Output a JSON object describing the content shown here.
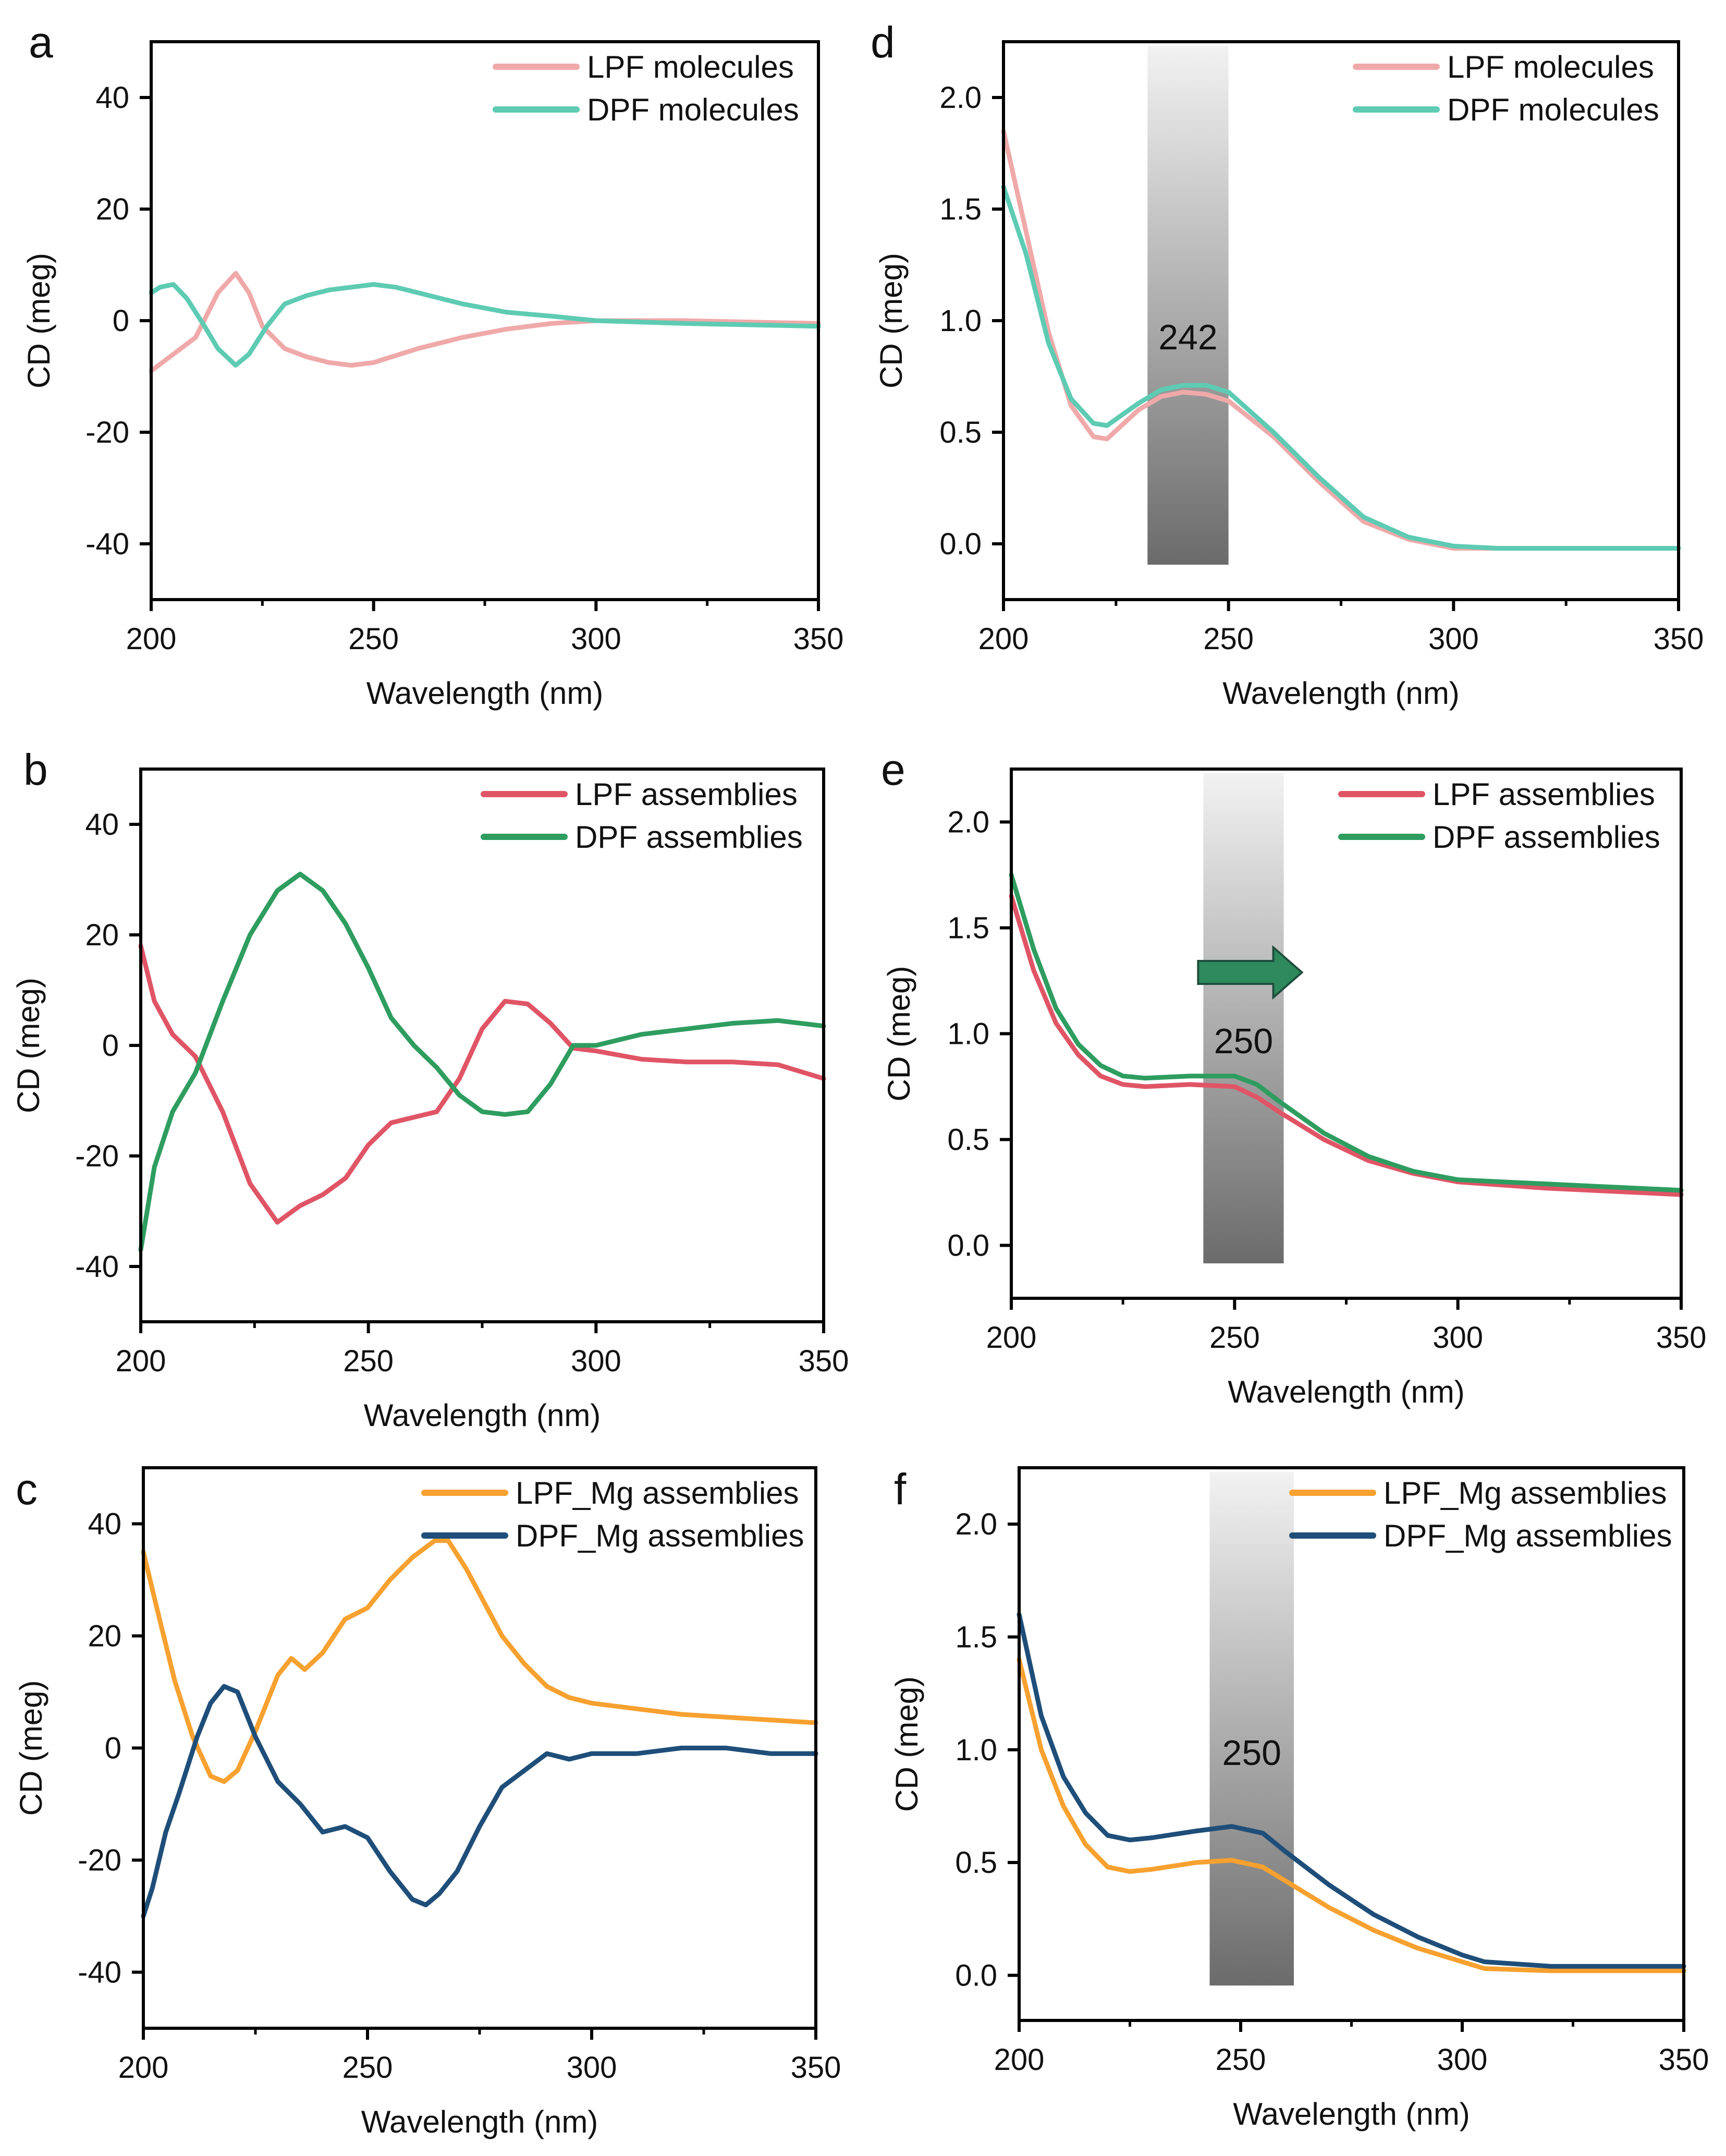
{
  "figure": {
    "panel_count": 6
  },
  "chart_data": [
    {
      "panel": "a",
      "type": "line",
      "title": "",
      "xlabel": "Wavelength (nm)",
      "ylabel": "CD (meg)",
      "xlim": [
        200,
        350
      ],
      "ylim": [
        -50,
        50
      ],
      "xticks": [
        200,
        250,
        300,
        350
      ],
      "yticks": [
        -40,
        -20,
        0,
        20,
        40
      ],
      "grid": false,
      "legend_position": "top-right",
      "series": [
        {
          "name": "LPF molecules",
          "color": "#f0a9a9",
          "x": [
            200,
            205,
            210,
            215,
            219,
            222,
            225,
            230,
            235,
            240,
            245,
            250,
            260,
            270,
            280,
            290,
            300,
            320,
            350
          ],
          "y": [
            -9,
            -6,
            -3,
            5,
            8.5,
            5,
            -1,
            -5,
            -6.5,
            -7.5,
            -8,
            -7.5,
            -5,
            -3,
            -1.5,
            -0.5,
            0,
            0,
            -0.5
          ]
        },
        {
          "name": "DPF molecules",
          "color": "#5ecbb3",
          "x": [
            200,
            202,
            205,
            208,
            212,
            215,
            219,
            222,
            226,
            230,
            235,
            240,
            250,
            255,
            260,
            270,
            280,
            290,
            300,
            320,
            350
          ],
          "y": [
            5,
            6,
            6.5,
            4,
            -1,
            -5,
            -8,
            -6,
            -1,
            3,
            4.5,
            5.5,
            6.5,
            6,
            5,
            3,
            1.5,
            0.8,
            0,
            -0.5,
            -1
          ]
        }
      ]
    },
    {
      "panel": "d",
      "type": "line",
      "title": "",
      "xlabel": "Wavelength (nm)",
      "ylabel": "CD (meg)",
      "xlim": [
        200,
        350
      ],
      "ylim": [
        -0.25,
        2.25
      ],
      "xticks": [
        200,
        250,
        300,
        350
      ],
      "yticks": [
        0.0,
        0.5,
        1.0,
        1.5,
        2.0
      ],
      "ytick_labels": [
        "0.0",
        "0.5",
        "1.0",
        "1.5",
        "2.0"
      ],
      "grid": false,
      "legend_position": "top-right",
      "highlight_band": {
        "x_from": 232,
        "x_to": 250,
        "label": "242"
      },
      "series": [
        {
          "name": "LPF molecules",
          "color": "#f0a9a9",
          "x": [
            200,
            205,
            210,
            215,
            220,
            223,
            230,
            235,
            240,
            245,
            250,
            260,
            270,
            280,
            290,
            300,
            310,
            330,
            350
          ],
          "y": [
            1.85,
            1.4,
            0.95,
            0.62,
            0.48,
            0.47,
            0.6,
            0.66,
            0.68,
            0.67,
            0.64,
            0.48,
            0.28,
            0.1,
            0.02,
            -0.02,
            -0.02,
            -0.02,
            -0.02
          ]
        },
        {
          "name": "DPF molecules",
          "color": "#5ecbb3",
          "x": [
            200,
            205,
            210,
            215,
            220,
            223,
            230,
            235,
            240,
            245,
            250,
            260,
            270,
            280,
            290,
            300,
            310,
            330,
            350
          ],
          "y": [
            1.6,
            1.3,
            0.9,
            0.65,
            0.54,
            0.53,
            0.63,
            0.69,
            0.71,
            0.71,
            0.68,
            0.5,
            0.3,
            0.12,
            0.03,
            -0.01,
            -0.02,
            -0.02,
            -0.02
          ]
        }
      ]
    },
    {
      "panel": "b",
      "type": "line",
      "title": "",
      "xlabel": "Wavelength (nm)",
      "ylabel": "CD (meg)",
      "xlim": [
        200,
        350
      ],
      "ylim": [
        -50,
        50
      ],
      "xticks": [
        200,
        250,
        300,
        350
      ],
      "yticks": [
        -40,
        -20,
        0,
        20,
        40
      ],
      "grid": false,
      "legend_position": "top-right",
      "series": [
        {
          "name": "LPF assemblies",
          "color": "#e05566",
          "x": [
            200,
            203,
            207,
            212,
            218,
            224,
            230,
            235,
            240,
            245,
            250,
            255,
            260,
            265,
            270,
            275,
            280,
            285,
            290,
            295,
            300,
            310,
            320,
            330,
            340,
            350
          ],
          "y": [
            18,
            8,
            2,
            -2,
            -12,
            -25,
            -32,
            -29,
            -27,
            -24,
            -18,
            -14,
            -13,
            -12,
            -6,
            3,
            8,
            7.5,
            4,
            -0.5,
            -1,
            -2.5,
            -3,
            -3,
            -3.5,
            -6
          ]
        },
        {
          "name": "DPF assemblies",
          "color": "#2e9d5f",
          "x": [
            200,
            203,
            207,
            212,
            218,
            224,
            230,
            235,
            240,
            245,
            250,
            255,
            260,
            265,
            270,
            275,
            280,
            285,
            290,
            295,
            300,
            310,
            320,
            330,
            340,
            350
          ],
          "y": [
            -37,
            -22,
            -12,
            -5,
            8,
            20,
            28,
            31,
            28,
            22,
            14,
            5,
            0,
            -4,
            -9,
            -12,
            -12.5,
            -12,
            -7,
            0,
            0,
            2,
            3,
            4,
            4.5,
            3.5
          ]
        }
      ]
    },
    {
      "panel": "e",
      "type": "line",
      "title": "",
      "xlabel": "Wavelength (nm)",
      "ylabel": "CD (meg)",
      "xlim": [
        200,
        350
      ],
      "ylim": [
        -0.25,
        2.25
      ],
      "xticks": [
        200,
        250,
        300,
        350
      ],
      "yticks": [
        0.0,
        0.5,
        1.0,
        1.5,
        2.0
      ],
      "ytick_labels": [
        "0.0",
        "0.5",
        "1.0",
        "1.5",
        "2.0"
      ],
      "grid": false,
      "legend_position": "top-right",
      "highlight_band": {
        "x_from": 243,
        "x_to": 261,
        "label": "250",
        "arrow": "right"
      },
      "series": [
        {
          "name": "LPF assemblies",
          "color": "#e05566",
          "x": [
            200,
            205,
            210,
            215,
            220,
            225,
            230,
            240,
            250,
            255,
            260,
            270,
            280,
            290,
            300,
            320,
            340,
            350
          ],
          "y": [
            1.65,
            1.3,
            1.05,
            0.9,
            0.8,
            0.76,
            0.75,
            0.76,
            0.75,
            0.7,
            0.63,
            0.5,
            0.4,
            0.34,
            0.3,
            0.27,
            0.25,
            0.24
          ]
        },
        {
          "name": "DPF assemblies",
          "color": "#2e9d5f",
          "x": [
            200,
            205,
            210,
            215,
            220,
            225,
            230,
            240,
            250,
            255,
            260,
            270,
            280,
            290,
            300,
            320,
            340,
            350
          ],
          "y": [
            1.75,
            1.4,
            1.12,
            0.95,
            0.85,
            0.8,
            0.79,
            0.8,
            0.8,
            0.76,
            0.68,
            0.53,
            0.42,
            0.35,
            0.31,
            0.29,
            0.27,
            0.26
          ]
        }
      ]
    },
    {
      "panel": "c",
      "type": "line",
      "title": "",
      "xlabel": "Wavelength (nm)",
      "ylabel": "CD (meg)",
      "xlim": [
        200,
        350
      ],
      "ylim": [
        -50,
        50
      ],
      "xticks": [
        200,
        250,
        300,
        350
      ],
      "yticks": [
        -40,
        -20,
        0,
        20,
        40
      ],
      "grid": false,
      "legend_position": "top-right",
      "series": [
        {
          "name": "LPF_Mg assemblies",
          "color": "#f7a130",
          "x": [
            200,
            203,
            207,
            211,
            215,
            218,
            221,
            225,
            230,
            233,
            236,
            240,
            245,
            250,
            255,
            260,
            265,
            268,
            272,
            276,
            280,
            285,
            290,
            295,
            300,
            310,
            320,
            330,
            340,
            350
          ],
          "y": [
            35,
            25,
            12,
            2,
            -5,
            -6,
            -4,
            3,
            13,
            16,
            14,
            17,
            23,
            25,
            30,
            34,
            37,
            37,
            32,
            26,
            20,
            15,
            11,
            9,
            8,
            7,
            6,
            5.5,
            5,
            4.5
          ]
        },
        {
          "name": "DPF_Mg assemblies",
          "color": "#1e4e79",
          "x": [
            200,
            202,
            205,
            208,
            212,
            215,
            218,
            221,
            225,
            230,
            235,
            240,
            245,
            250,
            255,
            260,
            263,
            266,
            270,
            275,
            280,
            285,
            290,
            295,
            300,
            310,
            320,
            330,
            340,
            350
          ],
          "y": [
            -30,
            -25,
            -15,
            -8,
            2,
            8,
            11,
            10,
            2,
            -6,
            -10,
            -15,
            -14,
            -16,
            -22,
            -27,
            -28,
            -26,
            -22,
            -14,
            -7,
            -4,
            -1,
            -2,
            -1,
            -1,
            0,
            0,
            -1,
            -1
          ]
        }
      ]
    },
    {
      "panel": "f",
      "type": "line",
      "title": "",
      "xlabel": "Wavelength (nm)",
      "ylabel": "CD (meg)",
      "xlim": [
        200,
        350
      ],
      "ylim": [
        -0.2,
        2.25
      ],
      "xticks": [
        200,
        250,
        300,
        350
      ],
      "yticks": [
        0.0,
        0.5,
        1.0,
        1.5,
        2.0
      ],
      "ytick_labels": [
        "0.0",
        "0.5",
        "1.0",
        "1.5",
        "2.0"
      ],
      "grid": false,
      "legend_position": "top-right",
      "highlight_band": {
        "x_from": 243,
        "x_to": 262,
        "label": "250"
      },
      "series": [
        {
          "name": "LPF_Mg assemblies",
          "color": "#f7a130",
          "x": [
            200,
            205,
            210,
            215,
            220,
            225,
            230,
            240,
            248,
            255,
            260,
            270,
            280,
            290,
            300,
            305,
            320,
            350
          ],
          "y": [
            1.4,
            1.0,
            0.75,
            0.58,
            0.48,
            0.46,
            0.47,
            0.5,
            0.51,
            0.48,
            0.42,
            0.3,
            0.2,
            0.12,
            0.06,
            0.03,
            0.02,
            0.02
          ]
        },
        {
          "name": "DPF_Mg assemblies",
          "color": "#1e4e79",
          "x": [
            200,
            205,
            210,
            215,
            220,
            225,
            230,
            240,
            248,
            255,
            260,
            270,
            280,
            290,
            300,
            305,
            320,
            350
          ],
          "y": [
            1.6,
            1.15,
            0.88,
            0.72,
            0.62,
            0.6,
            0.61,
            0.64,
            0.66,
            0.63,
            0.55,
            0.4,
            0.27,
            0.17,
            0.09,
            0.06,
            0.04,
            0.04
          ]
        }
      ]
    }
  ]
}
